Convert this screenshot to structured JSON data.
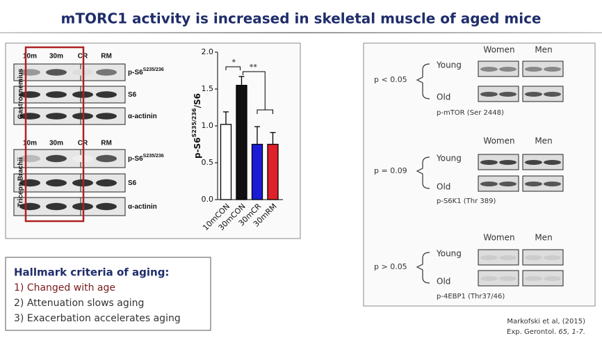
{
  "title": "mTORC1 activity is increased in skeletal muscle of aged mice",
  "blots_left": {
    "lanes_top": [
      "10m",
      "30m",
      "CR",
      "RM"
    ],
    "lanes_bottom": [
      "10m",
      "30m",
      "CR",
      "RM"
    ],
    "muscles": [
      "Gastrocnemius",
      "Triceps Brachii"
    ],
    "rows_top": [
      {
        "name": "p-S6",
        "sup": "S235/236"
      },
      {
        "name": "S6"
      },
      {
        "name": "α-actinin"
      }
    ],
    "rows_bottom": [
      {
        "name": "p-S6",
        "sup": "S235/236"
      },
      {
        "name": "S6"
      },
      {
        "name": "α-actinin"
      }
    ]
  },
  "chart_data": {
    "type": "bar",
    "ylabel": {
      "main": "p-S6",
      "sup": "S235/236",
      "suffix": "/S6"
    },
    "categories": [
      "10mCON",
      "30mCON",
      "30mCR",
      "30mRM"
    ],
    "values": [
      1.02,
      1.55,
      0.75,
      0.75
    ],
    "errors": [
      0.17,
      0.12,
      0.24,
      0.16
    ],
    "colors": [
      "#ffffff",
      "#111111",
      "#1c1cd8",
      "#e0202a"
    ],
    "ylim": [
      0,
      2
    ],
    "yticks": [
      {
        "value": 0,
        "label": "0.0"
      },
      {
        "value": 0.5,
        "label": "0.5"
      },
      {
        "value": 1,
        "label": "1.0"
      },
      {
        "value": 1.5,
        "label": "1.5"
      },
      {
        "value": 2,
        "label": "2.0"
      }
    ],
    "annotations": [
      "*",
      "**"
    ]
  },
  "hallmark": {
    "title": "Hallmark criteria of aging:",
    "items": [
      "1) Changed with age",
      "2) Attenuation slows aging",
      "3) Exacerbation accelerates aging"
    ]
  },
  "blots_right": {
    "columns": [
      "Women",
      "Men"
    ],
    "groups": [
      {
        "p": "p < 0.05",
        "young": "Young",
        "old": "Old",
        "caption": "p-mTOR (Ser 2448)"
      },
      {
        "p": "p = 0.09",
        "young": "Young",
        "old": "Old",
        "caption": "p-S6K1 (Thr 389)"
      },
      {
        "p": "p > 0.05",
        "young": "Young",
        "old": "Old",
        "caption": "p-4EBP1 (Thr37/46)"
      }
    ],
    "columns_repeat": [
      [
        "Women",
        "Men"
      ],
      [
        "Women",
        "Men"
      ]
    ]
  },
  "citation": {
    "line1": "Markofski et al, (2015)",
    "line2_plain": "Exp. Gerontol. ",
    "line2_italic": "65, 1-7."
  }
}
